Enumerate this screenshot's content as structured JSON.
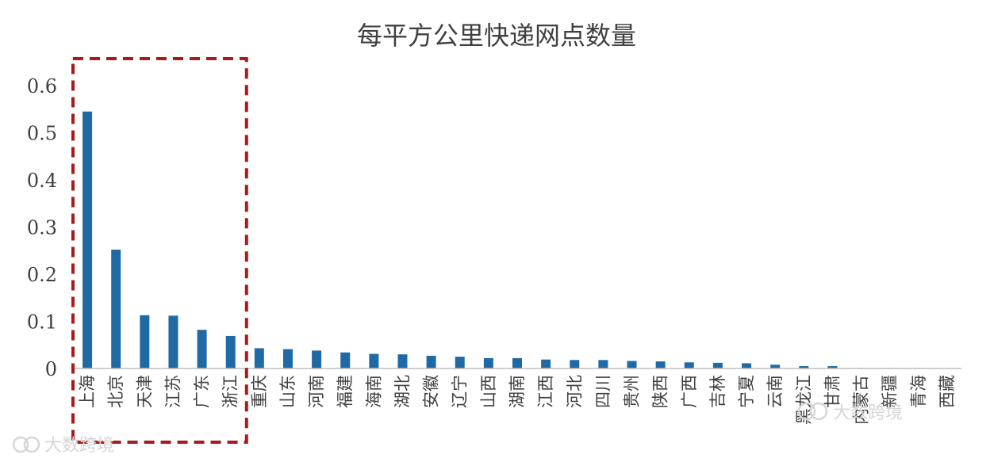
{
  "chart_data": {
    "type": "bar",
    "title": "每平方公里快递网点数量",
    "xlabel": "",
    "ylabel": "",
    "ylim": [
      0,
      0.6
    ],
    "yticks": [
      "0",
      "0.1",
      "0.2",
      "0.3",
      "0.4",
      "0.5",
      "0.6"
    ],
    "grid": false,
    "legend": "none",
    "highlight": {
      "style": "dashed-box",
      "color": "#a61c1c",
      "categories": [
        "上海",
        "北京",
        "天津",
        "江苏",
        "广东",
        "浙江"
      ]
    },
    "bar_color": "#1f6aa5",
    "categories": [
      "上海",
      "北京",
      "天津",
      "江苏",
      "广东",
      "浙江",
      "重庆",
      "山东",
      "河南",
      "福建",
      "海南",
      "湖北",
      "安徽",
      "辽宁",
      "山西",
      "湖南",
      "江西",
      "河北",
      "四川",
      "贵州",
      "陕西",
      "广西",
      "吉林",
      "宁夏",
      "云南",
      "黑龙江",
      "甘肃",
      "内蒙古",
      "新疆",
      "青海",
      "西藏"
    ],
    "values": [
      0.545,
      0.252,
      0.113,
      0.112,
      0.082,
      0.069,
      0.043,
      0.041,
      0.038,
      0.034,
      0.031,
      0.03,
      0.027,
      0.025,
      0.022,
      0.022,
      0.019,
      0.018,
      0.018,
      0.016,
      0.015,
      0.013,
      0.012,
      0.011,
      0.008,
      0.005,
      0.005,
      0.001,
      0.001,
      0.001,
      0.0
    ]
  },
  "watermarks": [
    "大数跨境",
    "大数跨境"
  ]
}
